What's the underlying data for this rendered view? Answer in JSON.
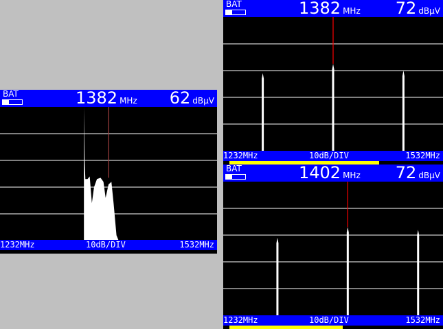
{
  "colors": {
    "header": "#0000ff",
    "marker": "#ff0000",
    "trace": "#ffffff",
    "grid": "#808080",
    "level_bar": "#ffff00"
  },
  "panels": [
    {
      "bat": "BAT",
      "freq": "1382",
      "freq_unit": "MHz",
      "level": "62",
      "level_unit": "dBµV",
      "start": "1232MHz",
      "scale": "10dB/DIV",
      "stop": "1532MHz",
      "marker_mhz": 1382,
      "mode": "fill",
      "trace": [
        [
          1348,
          0
        ],
        [
          1349,
          -20
        ],
        [
          1350,
          -27
        ],
        [
          1353,
          -27
        ],
        [
          1356,
          -26
        ],
        [
          1359,
          -36
        ],
        [
          1362,
          -30
        ],
        [
          1366,
          -27
        ],
        [
          1371,
          -26.5
        ],
        [
          1375,
          -28
        ],
        [
          1378,
          -34
        ],
        [
          1382,
          -29
        ],
        [
          1386,
          -28
        ],
        [
          1389,
          -36
        ],
        [
          1393,
          -48
        ],
        [
          1396,
          -50
        ],
        [
          1396,
          -50.5
        ]
      ]
    },
    {
      "bat": "BAT",
      "freq": "1382",
      "freq_unit": "MHz",
      "level": "72",
      "level_unit": "dBµV",
      "start": "1232MHz",
      "scale": "10dB/DIV",
      "stop": "1532MHz",
      "marker_mhz": 1382,
      "mode": "spikes",
      "level_fraction": 0.7,
      "spikes": [
        [
          1286,
          -21
        ],
        [
          1382,
          -17.5
        ],
        [
          1478,
          -20
        ]
      ]
    },
    {
      "bat": "BAT",
      "freq": "1402",
      "freq_unit": "MHz",
      "level": "72",
      "level_unit": "dBµV",
      "start": "1232MHz",
      "scale": "10dB/DIV",
      "stop": "1532MHz",
      "marker_mhz": 1402,
      "mode": "spikes",
      "level_fraction": 0.53,
      "spikes": [
        [
          1306,
          -21
        ],
        [
          1402,
          -17
        ],
        [
          1498,
          -18
        ]
      ]
    }
  ]
}
